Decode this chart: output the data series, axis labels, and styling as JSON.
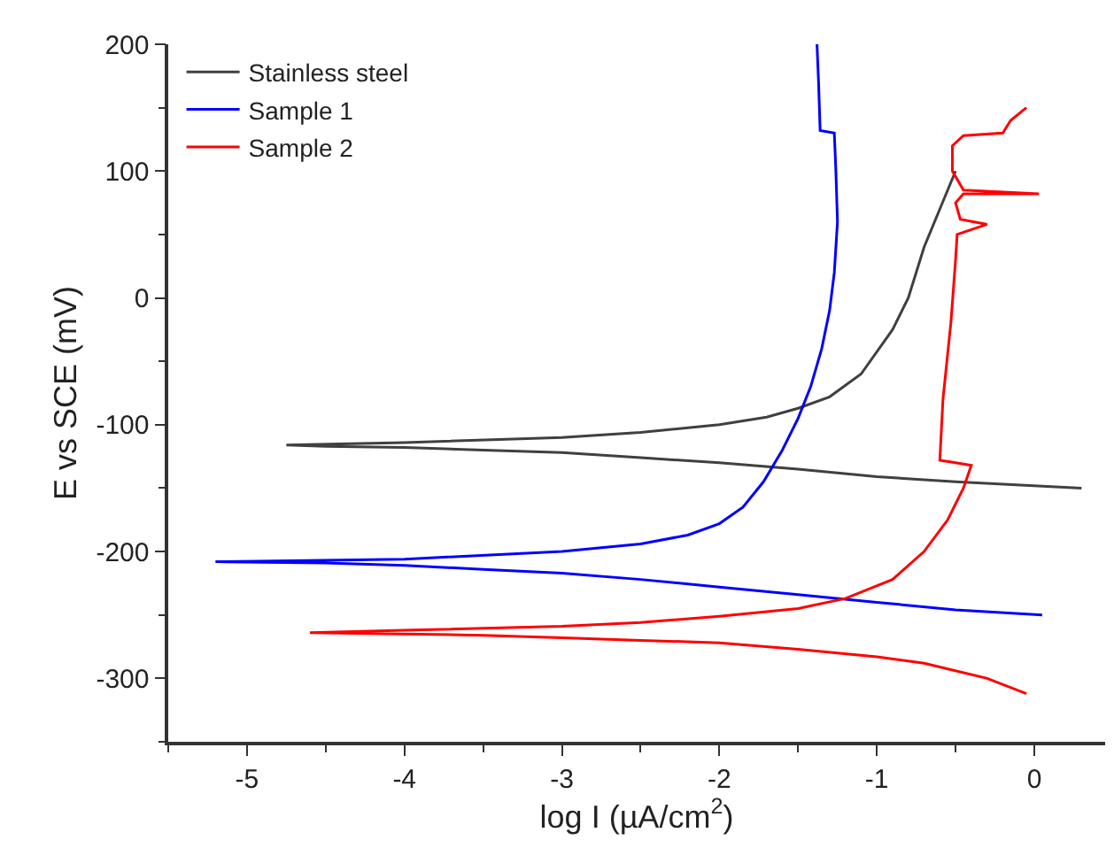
{
  "chart_data": {
    "type": "line",
    "xlabel": "log I (µA/cm$^{2}$)",
    "ylabel": "E vs SCE (mV)",
    "xlim": [
      -5.5,
      0.45
    ],
    "ylim": [
      -350,
      200
    ],
    "xticks": [
      -5,
      -4,
      -3,
      -2,
      -1,
      0
    ],
    "yticks": [
      -300,
      -200,
      -100,
      0,
      100,
      200
    ],
    "legend": "top left",
    "marker": "none",
    "line_style": "solid",
    "series": [
      {
        "name": "Stainless steel",
        "color": "#404040",
        "x": [
          0.3,
          -0.5,
          -1,
          -1.5,
          -2,
          -2.5,
          -3,
          -3.5,
          -4,
          -4.5,
          -4.75,
          -4,
          -3,
          -2.5,
          -2,
          -1.7,
          -1.5,
          -1.3,
          -1.1,
          -0.9,
          -0.8,
          -0.7,
          -0.6,
          -0.5
        ],
        "values": [
          -150,
          -145,
          -141,
          -135,
          -130,
          -126,
          -122,
          -120,
          -118,
          -117,
          -116,
          -114,
          -110,
          -106,
          -100,
          -94,
          -87,
          -78,
          -60,
          -25,
          0,
          40,
          70,
          100
        ]
      },
      {
        "name": "Sample 1",
        "color": "#0000ff",
        "x": [
          0.05,
          -0.5,
          -1,
          -1.5,
          -2,
          -2.5,
          -3,
          -3.5,
          -4,
          -4.5,
          -5.2,
          -4,
          -3,
          -2.5,
          -2.2,
          -2,
          -1.85,
          -1.72,
          -1.6,
          -1.5,
          -1.42,
          -1.35,
          -1.3,
          -1.27,
          -1.25,
          -1.26,
          -1.27,
          -1.36,
          -1.37,
          -1.38
        ],
        "values": [
          -250,
          -246,
          -240,
          -234,
          -228,
          -222,
          -217,
          -214,
          -211,
          -209,
          -208,
          -206,
          -200,
          -194,
          -187,
          -178,
          -165,
          -145,
          -120,
          -95,
          -70,
          -40,
          -10,
          20,
          60,
          100,
          130,
          132,
          170,
          200
        ]
      },
      {
        "name": "Sample 2",
        "color": "#ff0000",
        "x": [
          -0.05,
          -0.3,
          -0.7,
          -1,
          -1.5,
          -2,
          -2.5,
          -3,
          -3.5,
          -4,
          -4.6,
          -4,
          -3,
          -2.5,
          -2,
          -1.5,
          -1.2,
          -0.9,
          -0.7,
          -0.55,
          -0.45,
          -0.4,
          -0.5,
          -0.6,
          -0.58,
          -0.53,
          -0.5,
          -0.49,
          -0.3,
          -0.47,
          -0.5,
          -0.45,
          0.03,
          -0.45,
          -0.52,
          -0.52,
          -0.45,
          -0.2,
          -0.15,
          -0.05
        ],
        "values": [
          -312,
          -300,
          -288,
          -283,
          -277,
          -272,
          -270,
          -268,
          -266,
          -265,
          -264,
          -262,
          -259,
          -256,
          -251,
          -245,
          -237,
          -222,
          -200,
          -175,
          -150,
          -132,
          -130,
          -128,
          -80,
          -20,
          30,
          50,
          58,
          62,
          75,
          82,
          82,
          85,
          100,
          120,
          128,
          130,
          140,
          150
        ]
      }
    ]
  }
}
